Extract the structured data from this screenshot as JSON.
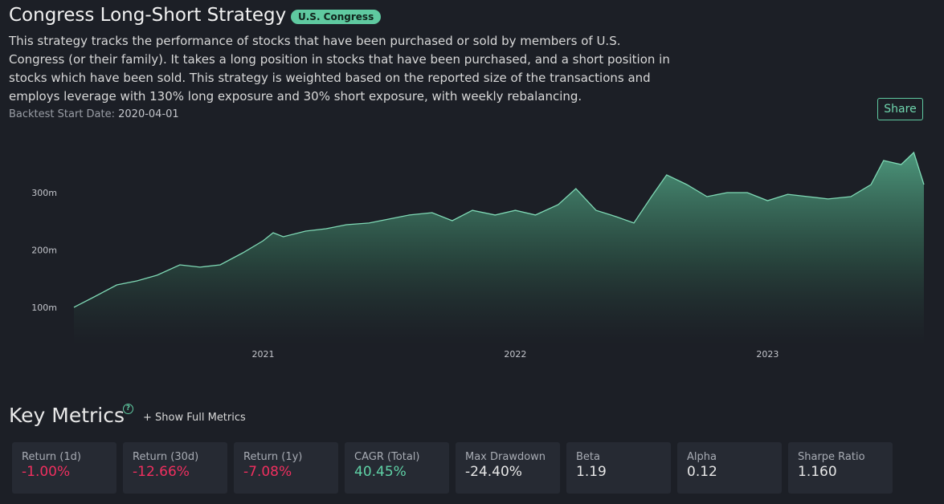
{
  "header": {
    "title": "Congress Long-Short Strategy",
    "badge": "U.S. Congress",
    "description": [
      "This strategy tracks the performance of stocks that have been purchased or sold by members of U.S.",
      "Congress (or their family). It takes a long position in stocks that have been purchased, and a short position in",
      "stocks which have been sold. This strategy is weighted based on the reported size of the transactions and",
      "employs leverage with 130% long exposure and 30% short exposure, with weekly rebalancing."
    ],
    "start_label": "Backtest Start Date:",
    "start_value": "2020-04-01",
    "share": "Share"
  },
  "chart_data": {
    "type": "area",
    "x": [
      2020.25,
      2020.33,
      2020.42,
      2020.5,
      2020.58,
      2020.67,
      2020.75,
      2020.83,
      2020.92,
      2021.0,
      2021.04,
      2021.08,
      2021.17,
      2021.25,
      2021.33,
      2021.42,
      2021.5,
      2021.58,
      2021.67,
      2021.75,
      2021.83,
      2021.92,
      2022.0,
      2022.08,
      2022.17,
      2022.24,
      2022.32,
      2022.4,
      2022.47,
      2022.54,
      2022.6,
      2022.68,
      2022.76,
      2022.84,
      2022.92,
      2023.0,
      2023.08,
      2023.16,
      2023.24,
      2023.33,
      2023.41,
      2023.46,
      2023.53,
      2023.58,
      2023.62
    ],
    "series": [
      {
        "color": "#7fd9b5",
        "values": [
          100,
          118,
          139,
          146,
          156,
          174,
          170,
          174,
          195,
          216,
          230,
          223,
          233,
          237,
          244,
          247,
          254,
          261,
          265,
          251,
          269,
          261,
          269,
          261,
          279,
          307,
          269,
          258,
          247,
          293,
          331,
          314,
          293,
          300,
          300,
          286,
          297,
          293,
          289,
          293,
          314,
          356,
          349,
          370,
          314
        ]
      }
    ],
    "xlim": [
      2020.25,
      2023.62
    ],
    "xticks": [
      2021,
      2022,
      2023
    ],
    "ylim": [
      34,
      384
    ],
    "yticks": [
      {
        "value": 100,
        "label": "100m"
      },
      {
        "value": 200,
        "label": "200m"
      },
      {
        "value": 300,
        "label": "300m"
      }
    ],
    "grid": false
  },
  "metrics": {
    "title": "Key Metrics",
    "help": "?",
    "show_full": "+ Show Full Metrics",
    "cards": [
      {
        "label": "Return (1d)",
        "value": "-1.00%",
        "color": "#ef2f5f"
      },
      {
        "label": "Return (30d)",
        "value": "-12.66%",
        "color": "#ef2f5f"
      },
      {
        "label": "Return (1y)",
        "value": "-7.08%",
        "color": "#ef2f5f"
      },
      {
        "label": "CAGR (Total)",
        "value": "40.45%",
        "color": "#5fd1a6"
      },
      {
        "label": "Max Drawdown",
        "value": "-24.40%",
        "color": "#e6e6e6"
      },
      {
        "label": "Beta",
        "value": "1.19",
        "color": "#e6e6e6"
      },
      {
        "label": "Alpha",
        "value": "0.12",
        "color": "#e6e6e6"
      },
      {
        "label": "Sharpe Ratio",
        "value": "1.160",
        "color": "#e6e6e6"
      }
    ]
  }
}
